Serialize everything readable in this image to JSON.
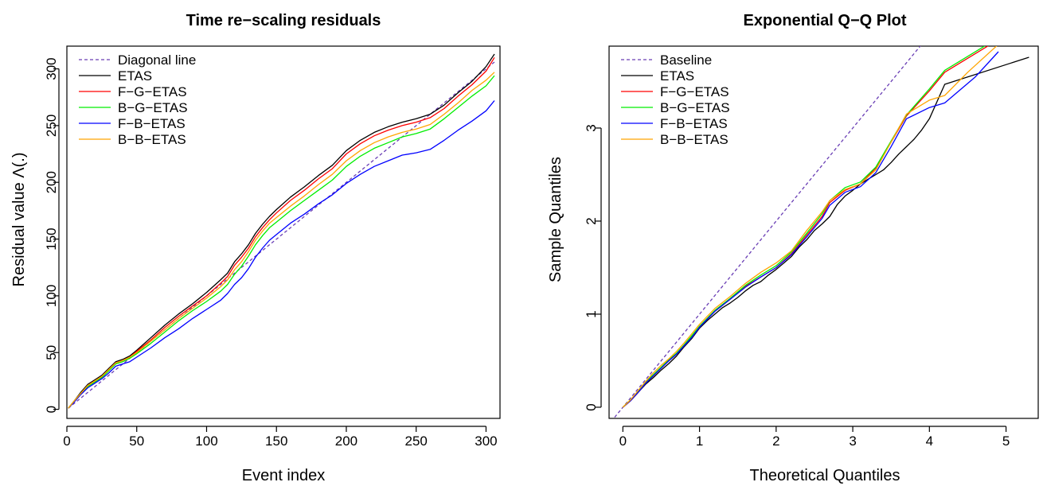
{
  "chart_data": [
    {
      "type": "line",
      "title": "Time re−scaling residuals",
      "xlabel": "Event index",
      "ylabel": "Residual value Λ(.)",
      "xlim": [
        0,
        310
      ],
      "ylim": [
        -8,
        320
      ],
      "xticks": [
        0,
        50,
        100,
        150,
        200,
        250,
        300
      ],
      "yticks": [
        0,
        50,
        100,
        150,
        200,
        250,
        300
      ],
      "legend_position": "top-left",
      "grid": false,
      "series": [
        {
          "name": "Diagonal line",
          "color": "#6a3fb5",
          "dash": true,
          "x": [
            1,
            306
          ],
          "y": [
            1,
            306
          ]
        },
        {
          "name": "ETAS",
          "color": "#000000",
          "dash": false,
          "x": [
            1,
            5,
            10,
            15,
            20,
            25,
            30,
            35,
            40,
            45,
            50,
            60,
            70,
            80,
            90,
            100,
            110,
            115,
            120,
            125,
            130,
            135,
            140,
            145,
            150,
            160,
            170,
            180,
            190,
            200,
            210,
            220,
            230,
            240,
            250,
            260,
            270,
            280,
            290,
            300,
            306
          ],
          "y": [
            1,
            7,
            15,
            22,
            26,
            30,
            36,
            42,
            44,
            47,
            52,
            63,
            74,
            84,
            93,
            103,
            114,
            120,
            130,
            137,
            145,
            155,
            163,
            170,
            176,
            187,
            196,
            206,
            215,
            228,
            237,
            244,
            249,
            253,
            256,
            260,
            268,
            279,
            289,
            302,
            313
          ]
        },
        {
          "name": "F−G−ETAS",
          "color": "#ff0000",
          "dash": false,
          "x": [
            1,
            5,
            10,
            15,
            20,
            25,
            30,
            35,
            40,
            45,
            50,
            60,
            70,
            80,
            90,
            100,
            110,
            115,
            120,
            125,
            130,
            135,
            140,
            145,
            150,
            160,
            170,
            180,
            190,
            200,
            210,
            220,
            230,
            240,
            250,
            260,
            270,
            280,
            290,
            300,
            306
          ],
          "y": [
            1,
            7,
            14,
            21,
            25,
            29,
            35,
            41,
            43,
            46,
            51,
            61,
            72,
            82,
            91,
            100,
            111,
            117,
            127,
            134,
            142,
            152,
            160,
            167,
            173,
            184,
            193,
            203,
            212,
            225,
            234,
            241,
            246,
            250,
            253,
            257,
            265,
            276,
            286,
            298,
            310
          ]
        },
        {
          "name": "B−G−ETAS",
          "color": "#00ee00",
          "dash": false,
          "x": [
            1,
            5,
            10,
            15,
            20,
            25,
            30,
            35,
            40,
            45,
            50,
            60,
            70,
            80,
            90,
            100,
            110,
            115,
            120,
            125,
            130,
            135,
            140,
            145,
            150,
            160,
            170,
            180,
            190,
            200,
            210,
            220,
            230,
            240,
            250,
            260,
            270,
            280,
            290,
            300,
            306
          ],
          "y": [
            1,
            7,
            14,
            20,
            24,
            28,
            34,
            40,
            42,
            45,
            49,
            58,
            68,
            78,
            87,
            95,
            104,
            110,
            119,
            126,
            135,
            145,
            153,
            160,
            165,
            175,
            184,
            193,
            202,
            214,
            223,
            230,
            235,
            240,
            243,
            247,
            256,
            266,
            276,
            285,
            294
          ]
        },
        {
          "name": "F−B−ETAS",
          "color": "#0000ff",
          "dash": false,
          "x": [
            1,
            5,
            10,
            15,
            20,
            25,
            30,
            35,
            40,
            45,
            50,
            60,
            70,
            80,
            90,
            100,
            110,
            115,
            120,
            125,
            130,
            135,
            140,
            145,
            150,
            160,
            170,
            180,
            190,
            200,
            210,
            220,
            230,
            240,
            250,
            260,
            270,
            280,
            290,
            300,
            306
          ],
          "y": [
            1,
            6,
            13,
            19,
            23,
            27,
            32,
            38,
            40,
            42,
            46,
            54,
            63,
            71,
            80,
            88,
            96,
            102,
            110,
            116,
            124,
            134,
            142,
            149,
            154,
            164,
            172,
            181,
            189,
            199,
            207,
            214,
            219,
            224,
            226,
            229,
            237,
            246,
            254,
            263,
            272
          ]
        },
        {
          "name": "B−B−ETAS",
          "color": "#ffa500",
          "dash": false,
          "x": [
            1,
            5,
            10,
            15,
            20,
            25,
            30,
            35,
            40,
            45,
            50,
            60,
            70,
            80,
            90,
            100,
            110,
            115,
            120,
            125,
            130,
            135,
            140,
            145,
            150,
            160,
            170,
            180,
            190,
            200,
            210,
            220,
            230,
            240,
            250,
            260,
            270,
            280,
            290,
            300,
            306
          ],
          "y": [
            1,
            7,
            14,
            21,
            25,
            29,
            35,
            41,
            43,
            46,
            50,
            60,
            70,
            80,
            89,
            98,
            108,
            114,
            123,
            130,
            139,
            149,
            157,
            164,
            169,
            179,
            188,
            198,
            207,
            219,
            228,
            235,
            240,
            244,
            247,
            251,
            260,
            270,
            281,
            290,
            297
          ]
        }
      ]
    },
    {
      "type": "line",
      "title": "Exponential Q−Q Plot",
      "xlabel": "Theoretical Quantiles",
      "ylabel": "Sample Quantiles",
      "xlim": [
        -0.18,
        5.42
      ],
      "ylim": [
        -0.12,
        3.88
      ],
      "xticks": [
        0,
        1,
        2,
        3,
        4,
        5
      ],
      "yticks": [
        0,
        1,
        2,
        3
      ],
      "legend_position": "top-left",
      "grid": false,
      "series": [
        {
          "name": "Baseline",
          "color": "#6a3fb5",
          "dash": true,
          "x": [
            -0.2,
            4.0
          ],
          "y": [
            -0.2,
            4.0
          ]
        },
        {
          "name": "ETAS",
          "color": "#000000",
          "dash": false,
          "x": [
            0,
            0.1,
            0.2,
            0.3,
            0.4,
            0.5,
            0.6,
            0.7,
            0.8,
            0.9,
            1.0,
            1.1,
            1.2,
            1.3,
            1.4,
            1.5,
            1.6,
            1.7,
            1.8,
            1.9,
            2.0,
            2.1,
            2.2,
            2.3,
            2.4,
            2.5,
            2.6,
            2.7,
            2.8,
            2.9,
            3.0,
            3.1,
            3.2,
            3.3,
            3.4,
            3.5,
            3.6,
            3.7,
            3.8,
            3.9,
            4.0,
            4.2,
            5.3
          ],
          "y": [
            0,
            0.07,
            0.16,
            0.25,
            0.32,
            0.4,
            0.47,
            0.55,
            0.65,
            0.74,
            0.85,
            0.93,
            1.0,
            1.07,
            1.12,
            1.18,
            1.25,
            1.31,
            1.35,
            1.42,
            1.48,
            1.55,
            1.62,
            1.72,
            1.8,
            1.9,
            1.97,
            2.05,
            2.18,
            2.27,
            2.33,
            2.4,
            2.45,
            2.5,
            2.55,
            2.63,
            2.72,
            2.8,
            2.88,
            2.98,
            3.1,
            3.47,
            3.76
          ]
        },
        {
          "name": "F−G−ETAS",
          "color": "#ff0000",
          "dash": false,
          "x": [
            0,
            0.1,
            0.2,
            0.3,
            0.4,
            0.5,
            0.6,
            0.7,
            0.8,
            0.9,
            1.0,
            1.2,
            1.4,
            1.6,
            1.8,
            2.0,
            2.2,
            2.4,
            2.6,
            2.7,
            2.9,
            3.1,
            3.3,
            3.5,
            3.7,
            4.0,
            4.2,
            4.8
          ],
          "y": [
            0,
            0.07,
            0.16,
            0.26,
            0.34,
            0.42,
            0.5,
            0.57,
            0.66,
            0.76,
            0.86,
            1.03,
            1.16,
            1.3,
            1.4,
            1.5,
            1.65,
            1.85,
            2.05,
            2.2,
            2.33,
            2.4,
            2.57,
            2.85,
            3.13,
            3.4,
            3.6,
            3.9
          ]
        },
        {
          "name": "B−G−ETAS",
          "color": "#00ee00",
          "dash": false,
          "x": [
            0,
            0.1,
            0.2,
            0.3,
            0.4,
            0.5,
            0.6,
            0.7,
            0.8,
            0.9,
            1.0,
            1.2,
            1.4,
            1.6,
            1.8,
            2.0,
            2.2,
            2.4,
            2.6,
            2.7,
            2.9,
            3.1,
            3.3,
            3.5,
            3.7,
            4.0,
            4.2,
            4.8
          ],
          "y": [
            0,
            0.08,
            0.17,
            0.27,
            0.35,
            0.43,
            0.51,
            0.58,
            0.67,
            0.77,
            0.87,
            1.04,
            1.17,
            1.31,
            1.42,
            1.52,
            1.67,
            1.87,
            2.08,
            2.22,
            2.36,
            2.42,
            2.58,
            2.86,
            3.14,
            3.42,
            3.62,
            3.92
          ]
        },
        {
          "name": "F−B−ETAS",
          "color": "#0000ff",
          "dash": false,
          "x": [
            0,
            0.1,
            0.2,
            0.3,
            0.4,
            0.5,
            0.6,
            0.7,
            0.8,
            0.9,
            1.0,
            1.2,
            1.4,
            1.6,
            1.8,
            2.0,
            2.2,
            2.4,
            2.6,
            2.7,
            2.9,
            3.1,
            3.3,
            3.5,
            3.7,
            4.0,
            4.2,
            4.6,
            4.9
          ],
          "y": [
            0,
            0.07,
            0.16,
            0.26,
            0.34,
            0.42,
            0.5,
            0.57,
            0.66,
            0.75,
            0.86,
            1.03,
            1.16,
            1.29,
            1.4,
            1.5,
            1.64,
            1.83,
            2.03,
            2.17,
            2.31,
            2.37,
            2.52,
            2.8,
            3.1,
            3.22,
            3.27,
            3.55,
            3.82
          ]
        },
        {
          "name": "B−B−ETAS",
          "color": "#ffa500",
          "dash": false,
          "x": [
            0,
            0.1,
            0.2,
            0.3,
            0.4,
            0.5,
            0.6,
            0.7,
            0.8,
            0.9,
            1.0,
            1.2,
            1.4,
            1.6,
            1.8,
            2.0,
            2.2,
            2.4,
            2.6,
            2.7,
            2.9,
            3.1,
            3.3,
            3.5,
            3.7,
            4.0,
            4.2,
            4.5,
            4.9
          ],
          "y": [
            0,
            0.08,
            0.18,
            0.28,
            0.37,
            0.45,
            0.52,
            0.6,
            0.69,
            0.79,
            0.89,
            1.06,
            1.19,
            1.33,
            1.45,
            1.55,
            1.68,
            1.9,
            2.1,
            2.22,
            2.34,
            2.4,
            2.55,
            2.85,
            3.15,
            3.3,
            3.35,
            3.6,
            3.9
          ]
        }
      ]
    }
  ]
}
